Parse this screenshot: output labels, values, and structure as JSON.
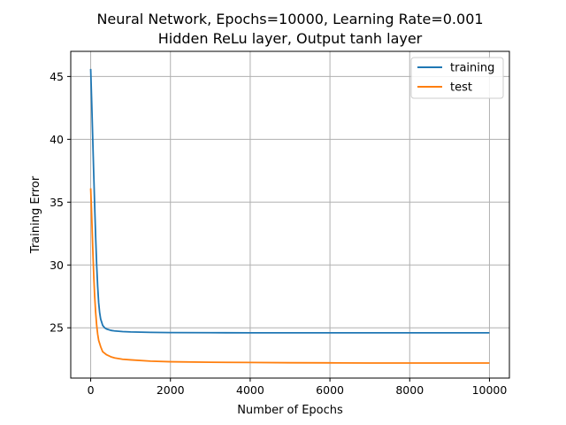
{
  "chart_data": {
    "type": "line",
    "title": "Neural Network, Epochs=10000, Learning Rate=0.001",
    "subtitle": "Hidden ReLu layer, Output tanh layer",
    "xlabel": "Number of Epochs",
    "ylabel": "Training Error",
    "xlim": [
      -500,
      10500
    ],
    "ylim": [
      21,
      47
    ],
    "xticks": [
      0,
      2000,
      4000,
      6000,
      8000,
      10000
    ],
    "xtick_labels": [
      "0",
      "2000",
      "4000",
      "6000",
      "8000",
      "10000"
    ],
    "yticks": [
      25,
      30,
      35,
      40,
      45
    ],
    "ytick_labels": [
      "25",
      "30",
      "35",
      "40",
      "45"
    ],
    "grid": true,
    "legend_position": "top-right",
    "series": [
      {
        "name": "training",
        "color": "#1f77b4",
        "x": [
          0,
          25,
          50,
          75,
          100,
          125,
          150,
          175,
          200,
          225,
          250,
          300,
          350,
          400,
          500,
          600,
          800,
          1000,
          1500,
          2000,
          3000,
          4000,
          5000,
          6000,
          7000,
          8000,
          9000,
          10000
        ],
        "y": [
          45.6,
          43.0,
          40.2,
          37.4,
          34.7,
          32.2,
          30.0,
          28.3,
          27.0,
          26.2,
          25.7,
          25.2,
          25.0,
          24.9,
          24.8,
          24.75,
          24.7,
          24.67,
          24.64,
          24.62,
          24.61,
          24.6,
          24.6,
          24.6,
          24.6,
          24.6,
          24.6,
          24.6
        ]
      },
      {
        "name": "test",
        "color": "#ff7f0e",
        "x": [
          0,
          20,
          40,
          60,
          80,
          100,
          125,
          150,
          175,
          200,
          250,
          300,
          400,
          500,
          600,
          800,
          1000,
          1500,
          2000,
          3000,
          4000,
          5000,
          6000,
          7000,
          8000,
          9000,
          10000
        ],
        "y": [
          36.1,
          34.4,
          32.5,
          30.6,
          28.9,
          27.5,
          26.2,
          25.2,
          24.5,
          24.0,
          23.5,
          23.1,
          22.85,
          22.7,
          22.6,
          22.5,
          22.45,
          22.35,
          22.3,
          22.26,
          22.24,
          22.22,
          22.21,
          22.2,
          22.2,
          22.2,
          22.2
        ]
      }
    ]
  }
}
